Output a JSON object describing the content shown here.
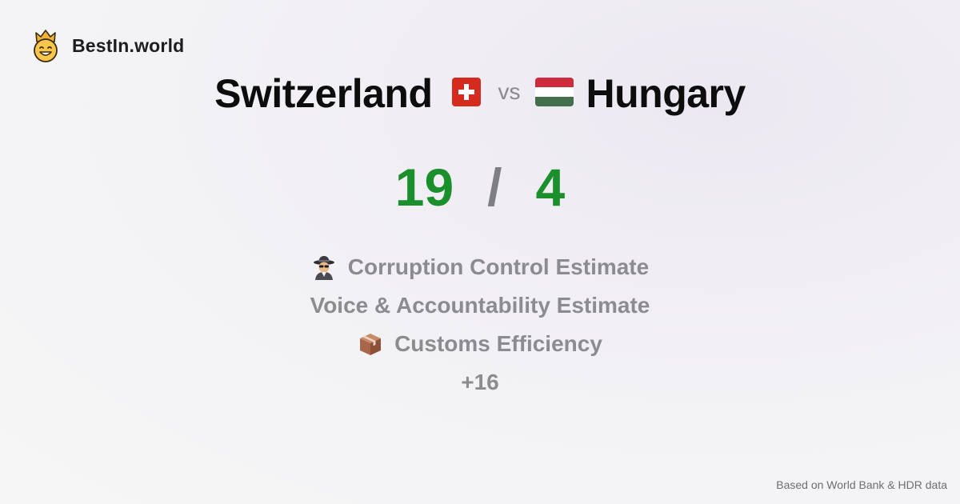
{
  "brand": {
    "name": "BestIn.world",
    "logo_icon": "crown-smiley-icon"
  },
  "comparison": {
    "left_country": "Switzerland",
    "left_flag_icon": "swiss-flag-icon",
    "vs_label": "vs",
    "right_country": "Hungary",
    "right_flag_icon": "hungarian-flag-icon"
  },
  "score": {
    "left": "19",
    "separator": "/",
    "right": "4",
    "color": "#1a8f2c"
  },
  "metrics": [
    {
      "icon": "spy-icon",
      "label": "Corruption Control Estimate"
    },
    {
      "icon": "",
      "label": "Voice & Accountability Estimate"
    },
    {
      "icon": "package-icon",
      "label": "Customs Efficiency"
    }
  ],
  "more_label": "+16",
  "footer": {
    "source": "Based on World Bank & HDR data"
  }
}
